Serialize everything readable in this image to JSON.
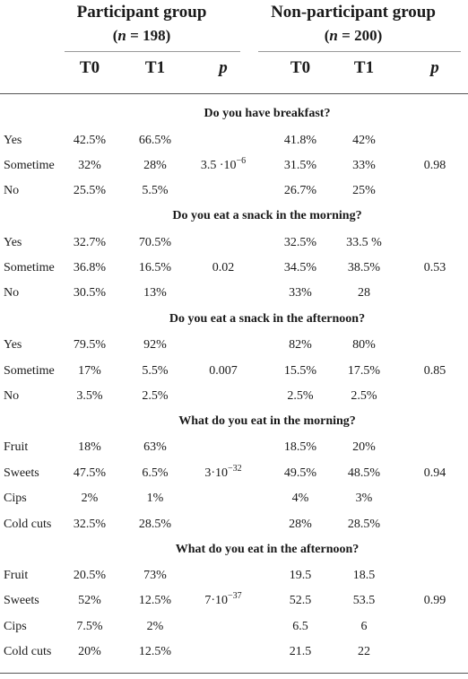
{
  "header": {
    "participant_group": {
      "title": "Participant group",
      "n": "(n = 198)"
    },
    "nonparticipant_group": {
      "title": "Non-participant group",
      "n": "(n = 200)"
    },
    "columns": [
      "T0",
      "T1",
      "p",
      "T0",
      "T1",
      "p"
    ]
  },
  "sections": [
    {
      "question": "Do you have breakfast?",
      "rows": [
        {
          "label": "Yes",
          "p_t0": "42.5%",
          "p_t1": "66.5%",
          "n_t0": "41.8%",
          "n_t1": "42%"
        },
        {
          "label": "Sometime",
          "p_t0": "32%",
          "p_t1": "28%",
          "n_t0": "31.5%",
          "n_t1": "33%"
        },
        {
          "label": "No",
          "p_t0": "25.5%",
          "p_t1": "5.5%",
          "n_t0": "26.7%",
          "n_t1": "25%"
        }
      ],
      "p_participant": "3.5 ·10−6",
      "p_nonparticipant": "0.98"
    },
    {
      "question": "Do you eat a snack in the morning?",
      "rows": [
        {
          "label": "Yes",
          "p_t0": "32.7%",
          "p_t1": "70.5%",
          "n_t0": "32.5%",
          "n_t1": "33.5 %"
        },
        {
          "label": "Sometime",
          "p_t0": "36.8%",
          "p_t1": "16.5%",
          "n_t0": "34.5%",
          "n_t1": "38.5%"
        },
        {
          "label": "No",
          "p_t0": "30.5%",
          "p_t1": "13%",
          "n_t0": "33%",
          "n_t1": "28"
        }
      ],
      "p_participant": "0.02",
      "p_nonparticipant": "0.53"
    },
    {
      "question": "Do you eat a snack in the afternoon?",
      "rows": [
        {
          "label": "Yes",
          "p_t0": "79.5%",
          "p_t1": "92%",
          "n_t0": "82%",
          "n_t1": "80%"
        },
        {
          "label": "Sometime",
          "p_t0": "17%",
          "p_t1": "5.5%",
          "n_t0": "15.5%",
          "n_t1": "17.5%"
        },
        {
          "label": "No",
          "p_t0": "3.5%",
          "p_t1": "2.5%",
          "n_t0": "2.5%",
          "n_t1": "2.5%"
        }
      ],
      "p_participant": "0.007",
      "p_nonparticipant": "0.85"
    },
    {
      "question": "What do you eat in the morning?",
      "rows": [
        {
          "label": "Fruit",
          "p_t0": "18%",
          "p_t1": "63%",
          "n_t0": "18.5%",
          "n_t1": "20%"
        },
        {
          "label": "Sweets",
          "p_t0": "47.5%",
          "p_t1": "6.5%",
          "n_t0": "49.5%",
          "n_t1": "48.5%"
        },
        {
          "label": "Cips",
          "p_t0": "2%",
          "p_t1": "1%",
          "n_t0": "4%",
          "n_t1": "3%"
        },
        {
          "label": "Cold cuts",
          "p_t0": "32.5%",
          "p_t1": "28.5%",
          "n_t0": "28%",
          "n_t1": "28.5%"
        }
      ],
      "p_participant": "3·10−32",
      "p_nonparticipant": "0.94"
    },
    {
      "question": "What do you eat in the afternoon?",
      "rows": [
        {
          "label": "Fruit",
          "p_t0": "20.5%",
          "p_t1": "73%",
          "n_t0": "19.5",
          "n_t1": "18.5"
        },
        {
          "label": "Sweets",
          "p_t0": "52%",
          "p_t1": "12.5%",
          "n_t0": "52.5",
          "n_t1": "53.5"
        },
        {
          "label": "Cips",
          "p_t0": "7.5%",
          "p_t1": "2%",
          "n_t0": "6.5",
          "n_t1": "6"
        },
        {
          "label": "Cold cuts",
          "p_t0": "20%",
          "p_t1": "12.5%",
          "n_t0": "21.5",
          "n_t1": "22"
        }
      ],
      "p_participant": "7·10−37",
      "p_nonparticipant": "0.99"
    }
  ]
}
